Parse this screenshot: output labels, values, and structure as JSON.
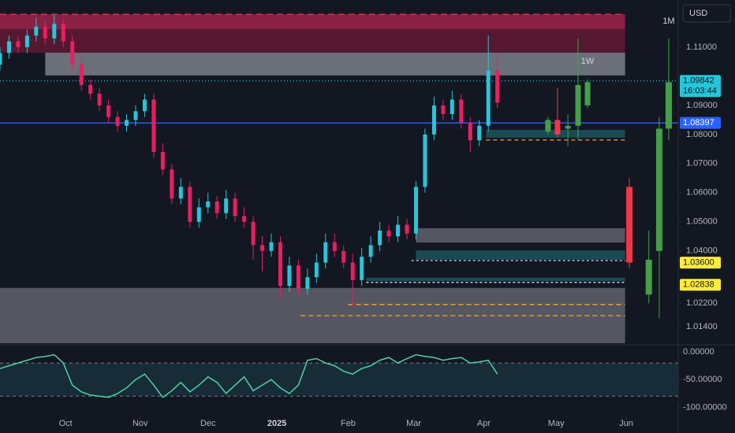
{
  "chart_data": {
    "type": "candlestick",
    "currency": "USD",
    "background": "#131722",
    "ylim": [
      1.0083,
      1.1262
    ],
    "yticks": [
      {
        "value": 1.11,
        "label": "1.11000"
      },
      {
        "value": 1.09,
        "label": "1.09000"
      },
      {
        "value": 1.08,
        "label": "1.08000"
      },
      {
        "value": 1.07,
        "label": "1.07000"
      },
      {
        "value": 1.06,
        "label": "1.06000"
      },
      {
        "value": 1.05,
        "label": "1.05000"
      },
      {
        "value": 1.04,
        "label": "1.04000"
      },
      {
        "value": 1.022,
        "label": "1.02200"
      },
      {
        "value": 1.014,
        "label": "1.01400"
      }
    ],
    "xlim": [
      0,
      300
    ],
    "xticks": [
      {
        "value": 29,
        "label": "Oct"
      },
      {
        "value": 62,
        "label": "Nov"
      },
      {
        "value": 92,
        "label": "Dec"
      },
      {
        "value": 122.5,
        "label": "2025"
      },
      {
        "value": 154,
        "label": "Feb"
      },
      {
        "value": 183,
        "label": "Mar"
      },
      {
        "value": 214,
        "label": "Apr"
      },
      {
        "value": 246,
        "label": "May"
      },
      {
        "value": 277,
        "label": "Jun"
      }
    ],
    "candles": {
      "up_color": "#26c6da",
      "down_color": "#e91e63",
      "x": [
        0,
        4,
        8,
        12,
        16,
        20,
        24,
        28,
        32,
        36,
        40,
        44,
        48,
        52,
        56,
        60,
        64,
        68,
        72,
        76,
        80,
        84,
        88,
        92,
        96,
        100,
        104,
        108,
        112,
        116,
        120,
        124,
        128,
        132,
        136,
        140,
        144,
        148,
        152,
        156,
        160,
        164,
        168,
        172,
        176,
        180,
        184,
        188,
        192,
        196,
        200,
        204,
        208,
        212,
        216,
        220
      ],
      "open": [
        1.104,
        1.108,
        1.112,
        1.11,
        1.114,
        1.117,
        1.113,
        1.118,
        1.112,
        1.104,
        1.097,
        1.094,
        1.09,
        1.086,
        1.083,
        1.085,
        1.088,
        1.092,
        1.074,
        1.068,
        1.058,
        1.062,
        1.05,
        1.055,
        1.057,
        1.053,
        1.058,
        1.052,
        1.05,
        1.042,
        1.04,
        1.043,
        1.028,
        1.035,
        1.027,
        1.031,
        1.036,
        1.043,
        1.04,
        1.036,
        1.03,
        1.038,
        1.042,
        1.047,
        1.045,
        1.049,
        1.046,
        1.062,
        1.08,
        1.09,
        1.087,
        1.092,
        1.084,
        1.078,
        1.083,
        1.102
      ],
      "high": [
        1.11,
        1.114,
        1.114,
        1.116,
        1.12,
        1.119,
        1.121,
        1.12,
        1.114,
        1.106,
        1.099,
        1.096,
        1.092,
        1.088,
        1.087,
        1.09,
        1.094,
        1.094,
        1.077,
        1.07,
        1.065,
        1.064,
        1.058,
        1.06,
        1.059,
        1.061,
        1.06,
        1.055,
        1.052,
        1.045,
        1.046,
        1.045,
        1.038,
        1.037,
        1.034,
        1.039,
        1.046,
        1.046,
        1.042,
        1.039,
        1.041,
        1.045,
        1.05,
        1.049,
        1.052,
        1.051,
        1.064,
        1.082,
        1.093,
        1.092,
        1.095,
        1.094,
        1.086,
        1.085,
        1.114,
        1.108
      ],
      "low": [
        1.102,
        1.106,
        1.108,
        1.108,
        1.112,
        1.111,
        1.111,
        1.11,
        1.102,
        1.095,
        1.092,
        1.088,
        1.084,
        1.081,
        1.081,
        1.083,
        1.086,
        1.072,
        1.066,
        1.056,
        1.056,
        1.048,
        1.048,
        1.053,
        1.051,
        1.051,
        1.05,
        1.048,
        1.037,
        1.033,
        1.038,
        1.024,
        1.026,
        1.025,
        1.025,
        1.029,
        1.034,
        1.038,
        1.034,
        1.021,
        1.028,
        1.036,
        1.04,
        1.043,
        1.043,
        1.044,
        1.044,
        1.06,
        1.078,
        1.085,
        1.085,
        1.082,
        1.074,
        1.076,
        1.081,
        1.089
      ],
      "close": [
        1.108,
        1.112,
        1.11,
        1.114,
        1.117,
        1.113,
        1.118,
        1.112,
        1.104,
        1.097,
        1.094,
        1.09,
        1.086,
        1.083,
        1.085,
        1.088,
        1.092,
        1.074,
        1.068,
        1.058,
        1.062,
        1.05,
        1.055,
        1.057,
        1.053,
        1.058,
        1.052,
        1.05,
        1.042,
        1.04,
        1.043,
        1.028,
        1.035,
        1.027,
        1.031,
        1.036,
        1.043,
        1.04,
        1.036,
        1.03,
        1.038,
        1.042,
        1.047,
        1.045,
        1.049,
        1.046,
        1.062,
        1.08,
        1.09,
        1.087,
        1.092,
        1.084,
        1.078,
        1.083,
        1.102,
        1.091
      ]
    },
    "weekly": {
      "label": "1W",
      "up_color": "#43a047",
      "down_color": "#f23645",
      "x": [
        242.4,
        246.6,
        251.2,
        255.7,
        259.9
      ],
      "open": [
        1.081,
        1.085,
        1.082,
        1.083,
        1.09
      ],
      "high": [
        1.086,
        1.096,
        1.087,
        1.113,
        1.099
      ],
      "low": [
        1.08,
        1.079,
        1.076,
        1.078,
        1.089
      ],
      "close": [
        1.085,
        1.08,
        1.083,
        1.097,
        1.098
      ]
    },
    "monthly": {
      "label": "1M",
      "up_color": "#43a047",
      "down_color": "#f23645",
      "x": [
        278.4,
        287,
        291.6,
        295.8
      ],
      "open": [
        1.062,
        1.025,
        1.04,
        1.082
      ],
      "high": [
        1.065,
        1.047,
        1.086,
        1.113
      ],
      "low": [
        1.034,
        1.022,
        1.017,
        1.078
      ],
      "close": [
        1.036,
        1.037,
        1.082,
        1.098
      ]
    },
    "zones": [
      {
        "x": [
          0,
          276.5
        ],
        "y": [
          1.1162,
          1.1213
        ],
        "color": "#b0264f"
      },
      {
        "x": [
          0,
          276.5
        ],
        "y": [
          1.1081,
          1.1162
        ],
        "color": "#6e1a37"
      },
      {
        "x": [
          20,
          276.5
        ],
        "y": [
          1.1003,
          1.1081
        ],
        "color": "#8a8d96"
      },
      {
        "x": [
          215,
          276.5
        ],
        "y": [
          1.0789,
          1.0816
        ],
        "color": "#1d5e66"
      },
      {
        "x": [
          184,
          276.5
        ],
        "y": [
          1.0429,
          1.0478
        ],
        "color": "#6b6e77"
      },
      {
        "x": [
          184,
          276.5
        ],
        "y": [
          1.037,
          1.0402
        ],
        "color": "#1d5e66"
      },
      {
        "x": [
          162,
          276.5
        ],
        "y": [
          1.0296,
          1.0308
        ],
        "color": "#1d5e66"
      },
      {
        "x": [
          0,
          276.5
        ],
        "y": [
          1.0083,
          1.0273
        ],
        "color": "#6b6e77"
      }
    ],
    "levels": [
      {
        "value": 1.1213,
        "x": [
          0,
          276.5
        ],
        "color": "#f23645",
        "dash": "8 5"
      },
      {
        "value": 1.09842,
        "x": [
          0,
          300
        ],
        "color": "#26c6da",
        "dash": "1 3"
      },
      {
        "value": 1.08397,
        "x": [
          0,
          300
        ],
        "color": "#2962ff",
        "dash": ""
      },
      {
        "value": 1.0781,
        "x": [
          215,
          276.5
        ],
        "color": "#f5a623",
        "dash": "5 4"
      },
      {
        "value": 1.0367,
        "x": [
          182,
          276.5
        ],
        "color": "#d1d4dc",
        "dash": "3 3"
      },
      {
        "value": 1.0292,
        "x": [
          162,
          276.5
        ],
        "color": "#d1d4dc",
        "dash": "3 3"
      },
      {
        "value": 1.0216,
        "x": [
          154,
          276.5
        ],
        "color": "#f5a623",
        "dash": "6 4"
      },
      {
        "value": 1.0178,
        "x": [
          133,
          276.5
        ],
        "color": "#f5a623",
        "dash": "6 4"
      }
    ],
    "price_tags": [
      {
        "value": 1.09842,
        "label": "1.09842",
        "sub": "16:03:44",
        "color": "#26c6da",
        "text_color": "#131722"
      },
      {
        "value": 1.08397,
        "label": "1.08397",
        "color": "#2962ff",
        "text_color": "#ffffff"
      },
      {
        "value": 1.036,
        "label": "1.03600",
        "color": "#ffeb3b",
        "text_color": "#131722"
      },
      {
        "value": 1.02838,
        "label": "1.02838",
        "color": "#ffeb3b",
        "text_color": "#131722"
      }
    ],
    "oscillator": {
      "color": "#4fd1a5",
      "ylim": [
        -118,
        10
      ],
      "yticks": [
        {
          "value": 0,
          "label": "0.00000"
        },
        {
          "value": -50,
          "label": "-50.00000"
        },
        {
          "value": -100,
          "label": "-100.00000"
        }
      ],
      "band": [
        -80,
        -20
      ],
      "values": [
        -30,
        -25,
        -20,
        -15,
        -10,
        -8,
        -5,
        -20,
        -60,
        -72,
        -78,
        -80,
        -82,
        -75,
        -65,
        -50,
        -40,
        -60,
        -82,
        -70,
        -55,
        -72,
        -60,
        -45,
        -55,
        -75,
        -60,
        -45,
        -70,
        -60,
        -50,
        -65,
        -75,
        -60,
        -15,
        -12,
        -20,
        -25,
        -35,
        -40,
        -30,
        -25,
        -15,
        -10,
        -20,
        -12,
        -5,
        -8,
        -10,
        -15,
        -12,
        -10,
        -20,
        -18,
        -15,
        -40
      ]
    }
  }
}
